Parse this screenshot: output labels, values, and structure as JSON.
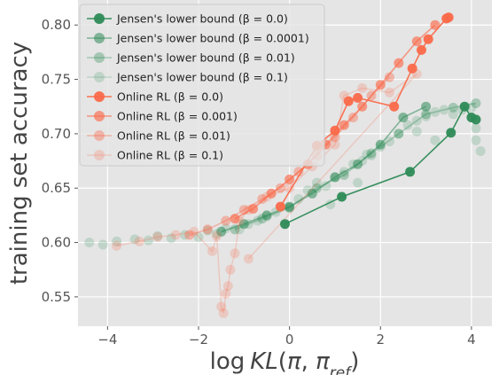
{
  "chart_data": {
    "type": "scatter",
    "xlabel": "log KL(π, π_ref)",
    "ylabel": "training set accuracy",
    "xlim": [
      -4.65,
      4.45
    ],
    "ylim": [
      0.523,
      0.823
    ],
    "x_ticks": [
      -4,
      -2,
      0,
      2,
      4
    ],
    "y_ticks": [
      0.55,
      0.6,
      0.65,
      0.7,
      0.75,
      0.8
    ],
    "grid": true,
    "legend_position": "top-left",
    "colors": {
      "jensen": "#2e8b57",
      "online_rl": "#fa6a4a",
      "plot_bg": "#e5e5e5",
      "grid": "#ffffff"
    },
    "series": [
      {
        "name": "Jensen's lower bound (β = 0.0)",
        "group": "jensen",
        "opacity": 0.95,
        "connected": true,
        "points": [
          [
            -0.1,
            0.617
          ],
          [
            1.15,
            0.642
          ],
          [
            2.65,
            0.665
          ],
          [
            3.55,
            0.701
          ],
          [
            3.85,
            0.725
          ],
          [
            4.0,
            0.715
          ],
          [
            4.1,
            0.713
          ]
        ]
      },
      {
        "name": "Jensen's lower bound (β = 0.0001)",
        "group": "jensen",
        "opacity": 0.55,
        "connected": true,
        "points": [
          [
            -1.5,
            0.61
          ],
          [
            -1.0,
            0.617
          ],
          [
            -0.5,
            0.625
          ],
          [
            0.0,
            0.633
          ],
          [
            0.5,
            0.645
          ],
          [
            1.0,
            0.66
          ],
          [
            1.5,
            0.672
          ],
          [
            2.0,
            0.69
          ],
          [
            2.5,
            0.715
          ],
          [
            3.0,
            0.725
          ]
        ]
      },
      {
        "name": "Jensen's lower bound (β = 0.01)",
        "group": "jensen",
        "opacity": 0.35,
        "connected": true,
        "points": [
          [
            -1.2,
            0.612
          ],
          [
            -0.6,
            0.622
          ],
          [
            0.0,
            0.632
          ],
          [
            0.6,
            0.65
          ],
          [
            1.2,
            0.662
          ],
          [
            1.8,
            0.682
          ],
          [
            2.4,
            0.7
          ],
          [
            3.0,
            0.718
          ],
          [
            3.6,
            0.724
          ],
          [
            4.1,
            0.728
          ]
        ]
      },
      {
        "name": "Jensen's lower bound (β = 0.1)",
        "group": "jensen",
        "opacity": 0.2,
        "connected": false,
        "points": [
          [
            -4.4,
            0.6
          ],
          [
            -4.1,
            0.598
          ],
          [
            -3.8,
            0.601
          ],
          [
            -3.4,
            0.603
          ],
          [
            -3.1,
            0.602
          ],
          [
            -2.9,
            0.606
          ],
          [
            -2.6,
            0.604
          ],
          [
            -2.3,
            0.607
          ],
          [
            -2.0,
            0.605
          ],
          [
            -1.8,
            0.611
          ],
          [
            -1.6,
            0.608
          ],
          [
            -1.4,
            0.613
          ],
          [
            -1.1,
            0.612
          ],
          [
            -0.9,
            0.617
          ],
          [
            -0.7,
            0.62
          ],
          [
            -0.5,
            0.624
          ],
          [
            -0.3,
            0.628
          ],
          [
            0.0,
            0.632
          ],
          [
            0.2,
            0.64
          ],
          [
            0.4,
            0.648
          ],
          [
            0.6,
            0.655
          ],
          [
            0.8,
            0.652
          ],
          [
            1.0,
            0.66
          ],
          [
            1.2,
            0.665
          ],
          [
            1.4,
            0.672
          ],
          [
            1.6,
            0.675
          ],
          [
            1.8,
            0.68
          ],
          [
            2.0,
            0.688
          ],
          [
            2.2,
            0.693
          ],
          [
            2.4,
            0.7
          ],
          [
            2.6,
            0.708
          ],
          [
            2.8,
            0.712
          ],
          [
            3.0,
            0.716
          ],
          [
            3.2,
            0.72
          ],
          [
            3.4,
            0.722
          ],
          [
            3.6,
            0.718
          ],
          [
            3.8,
            0.722
          ],
          [
            4.0,
            0.724
          ],
          [
            4.1,
            0.694
          ],
          [
            4.2,
            0.684
          ],
          [
            4.1,
            0.705
          ],
          [
            3.2,
            0.694
          ],
          [
            2.8,
            0.702
          ],
          [
            1.7,
            0.681
          ],
          [
            0.9,
            0.635
          ],
          [
            1.5,
            0.655
          ]
        ]
      },
      {
        "name": "Online RL (β = 0.0)",
        "group": "online_rl",
        "opacity": 0.95,
        "connected": true,
        "points": [
          [
            -0.2,
            0.633
          ],
          [
            0.6,
            0.689
          ],
          [
            1.0,
            0.703
          ],
          [
            1.3,
            0.73
          ],
          [
            1.5,
            0.733
          ],
          [
            2.3,
            0.725
          ],
          [
            2.7,
            0.76
          ],
          [
            2.9,
            0.777
          ],
          [
            3.05,
            0.787
          ],
          [
            3.45,
            0.806
          ],
          [
            3.5,
            0.807
          ]
        ]
      },
      {
        "name": "Online RL (β = 0.001)",
        "group": "online_rl",
        "opacity": 0.65,
        "connected": true,
        "points": [
          [
            -1.2,
            0.622
          ],
          [
            -0.8,
            0.631
          ],
          [
            -0.4,
            0.645
          ],
          [
            0.0,
            0.658
          ],
          [
            0.4,
            0.672
          ],
          [
            0.8,
            0.69
          ],
          [
            1.2,
            0.708
          ],
          [
            1.6,
            0.725
          ],
          [
            2.0,
            0.745
          ],
          [
            2.4,
            0.765
          ],
          [
            2.8,
            0.785
          ],
          [
            3.2,
            0.8
          ]
        ]
      },
      {
        "name": "Online RL (β = 0.01)",
        "group": "online_rl",
        "opacity": 0.4,
        "connected": true,
        "points": [
          [
            -2.2,
            0.607
          ],
          [
            -1.8,
            0.612
          ],
          [
            -1.4,
            0.62
          ],
          [
            -1.0,
            0.63
          ],
          [
            -0.6,
            0.64
          ],
          [
            -0.2,
            0.65
          ],
          [
            0.2,
            0.665
          ],
          [
            0.6,
            0.68
          ],
          [
            1.0,
            0.697
          ],
          [
            1.4,
            0.715
          ],
          [
            1.8,
            0.735
          ],
          [
            2.2,
            0.752
          ]
        ]
      },
      {
        "name": "Online RL (β = 0.1)",
        "group": "online_rl",
        "opacity": 0.22,
        "connected": true,
        "points": [
          [
            -3.8,
            0.597
          ],
          [
            -3.3,
            0.601
          ],
          [
            -2.9,
            0.605
          ],
          [
            -2.5,
            0.607
          ],
          [
            -2.1,
            0.61
          ],
          [
            -1.7,
            0.592
          ],
          [
            -1.6,
            0.606
          ],
          [
            -1.5,
            0.541
          ],
          [
            -1.45,
            0.535
          ],
          [
            -1.4,
            0.553
          ],
          [
            -1.35,
            0.56
          ],
          [
            -1.3,
            0.575
          ],
          [
            -1.2,
            0.59
          ],
          [
            -1.1,
            0.62
          ],
          [
            -0.9,
            0.63
          ],
          [
            -0.5,
            0.642
          ],
          [
            0.0,
            0.65
          ],
          [
            0.5,
            0.67
          ],
          [
            1.0,
            0.69
          ],
          [
            1.2,
            0.735
          ],
          [
            1.6,
            0.742
          ],
          [
            2.2,
            0.738
          ],
          [
            2.8,
            0.755
          ],
          [
            -0.9,
            0.585
          ]
        ]
      }
    ]
  }
}
